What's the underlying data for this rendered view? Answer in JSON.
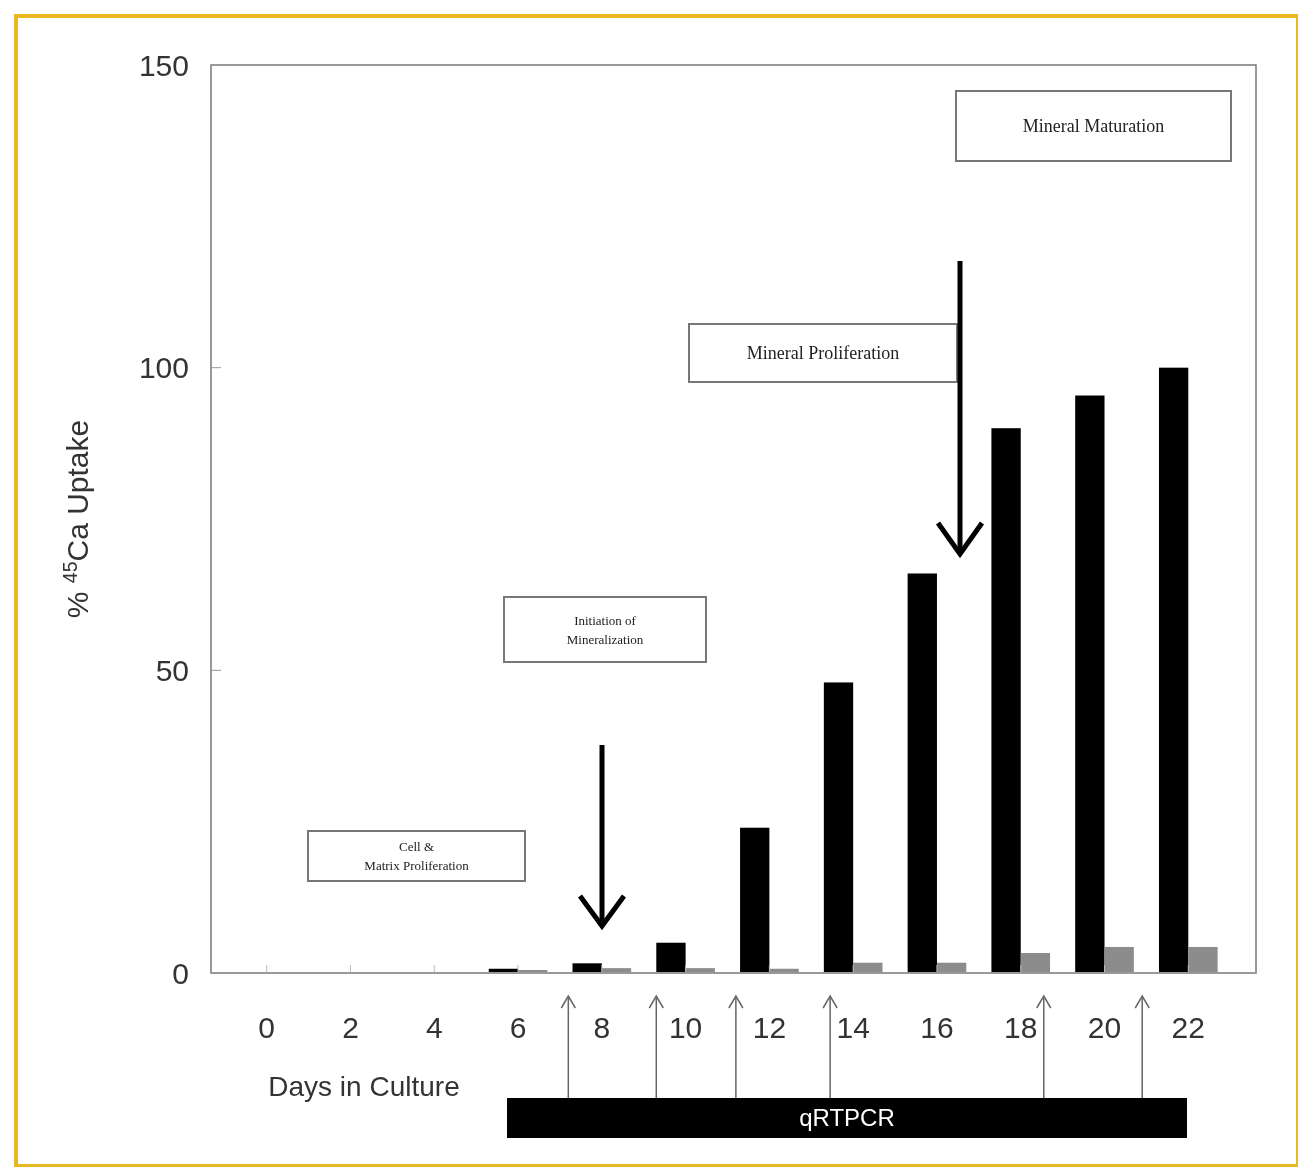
{
  "chart_data": {
    "type": "bar",
    "xlabel": "Days in Culture",
    "ylabel": "% $^{45}$Ca Uptake",
    "categories": [
      "0",
      "2",
      "4",
      "6",
      "8",
      "10",
      "12",
      "14",
      "16",
      "18",
      "20",
      "22"
    ],
    "series": [
      {
        "color": "#000000",
        "values": [
          0,
          0,
          0,
          0.7,
          1.6,
          5,
          24,
          48,
          66,
          90,
          95.4,
          100
        ]
      },
      {
        "color": "#8c8c8c",
        "values": [
          0,
          0,
          0,
          0.5,
          0.8,
          0.8,
          0.7,
          1.7,
          1.7,
          3.3,
          4.3,
          4.3
        ]
      }
    ],
    "ylim": [
      0,
      150
    ],
    "yticks": [
      0,
      50,
      100,
      150
    ],
    "grid": false,
    "annotations": [
      "Cell & Matrix Proliferation",
      "Initiation of Mineralization",
      "Mineral Proliferation",
      "Mineral Maturation",
      "qRTPCR"
    ]
  }
}
